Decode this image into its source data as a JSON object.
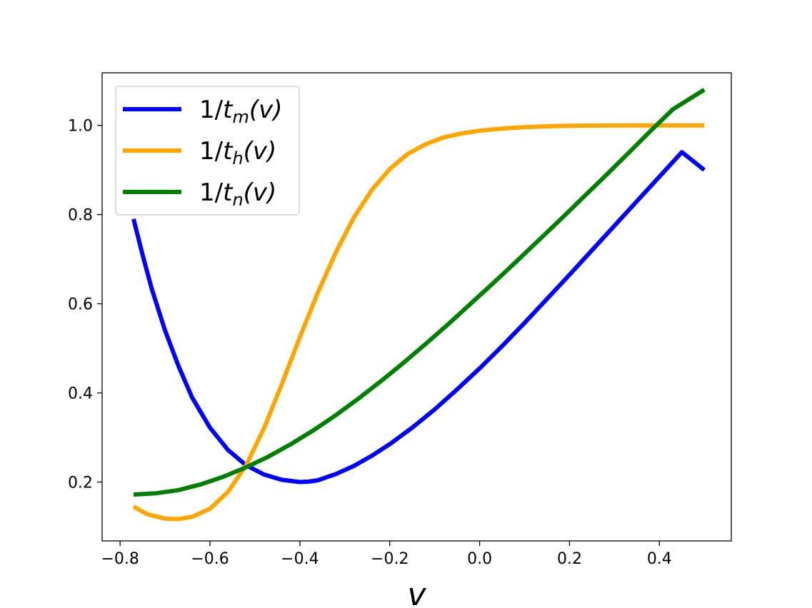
{
  "chart_data": {
    "type": "line",
    "xlabel": "v",
    "ylabel": "",
    "title": "",
    "xlim": [
      -0.84,
      0.56
    ],
    "ylim": [
      0.068,
      1.118
    ],
    "xticks": [
      "−0.8",
      "−0.6",
      "−0.4",
      "−0.2",
      "0.0",
      "0.2",
      "0.4"
    ],
    "yticks": [
      "0.2",
      "0.4",
      "0.6",
      "0.8",
      "1.0"
    ],
    "grid": false,
    "legend_position": "top-left",
    "series": [
      {
        "name": "1/t_m(v)",
        "legend": {
          "base": "1/",
          "var": "t",
          "sub": "m",
          "arg": "(v)"
        },
        "color": "#0000ff",
        "x": [
          -0.77,
          -0.75,
          -0.73,
          -0.7,
          -0.67,
          -0.64,
          -0.6,
          -0.56,
          -0.52,
          -0.48,
          -0.44,
          -0.4,
          -0.38,
          -0.36,
          -0.32,
          -0.28,
          -0.24,
          -0.2,
          -0.15,
          -0.1,
          -0.05,
          0.0,
          0.05,
          0.1,
          0.15,
          0.2,
          0.25,
          0.3,
          0.35,
          0.4,
          0.45,
          0.5
        ],
        "y": [
          0.79,
          0.71,
          0.635,
          0.54,
          0.46,
          0.39,
          0.322,
          0.272,
          0.238,
          0.217,
          0.205,
          0.2,
          0.201,
          0.204,
          0.218,
          0.236,
          0.259,
          0.285,
          0.322,
          0.363,
          0.408,
          0.455,
          0.505,
          0.557,
          0.611,
          0.665,
          0.72,
          0.775,
          0.83,
          0.885,
          0.94,
          0.9
        ]
      },
      {
        "name": "1/t_h(v)",
        "legend": {
          "base": "1/",
          "var": "t",
          "sub": "h",
          "arg": "(v)"
        },
        "color": "#ffa500",
        "x": [
          -0.77,
          -0.74,
          -0.7,
          -0.67,
          -0.64,
          -0.6,
          -0.56,
          -0.52,
          -0.48,
          -0.44,
          -0.4,
          -0.36,
          -0.32,
          -0.28,
          -0.24,
          -0.2,
          -0.16,
          -0.12,
          -0.08,
          -0.04,
          0.0,
          0.05,
          0.1,
          0.15,
          0.2,
          0.3,
          0.4,
          0.5
        ],
        "y": [
          0.145,
          0.128,
          0.118,
          0.117,
          0.122,
          0.14,
          0.178,
          0.237,
          0.32,
          0.42,
          0.525,
          0.625,
          0.715,
          0.793,
          0.855,
          0.902,
          0.936,
          0.958,
          0.973,
          0.982,
          0.988,
          0.993,
          0.996,
          0.998,
          0.999,
          1.0,
          1.0,
          1.0
        ]
      },
      {
        "name": "1/t_n(v)",
        "legend": {
          "base": "1/",
          "var": "t",
          "sub": "n",
          "arg": "(v)"
        },
        "color": "#008000",
        "x": [
          -0.77,
          -0.72,
          -0.67,
          -0.62,
          -0.57,
          -0.52,
          -0.47,
          -0.42,
          -0.37,
          -0.32,
          -0.27,
          -0.22,
          -0.17,
          -0.12,
          -0.07,
          -0.02,
          0.03,
          0.08,
          0.13,
          0.18,
          0.23,
          0.28,
          0.33,
          0.38,
          0.43,
          0.5
        ],
        "y": [
          0.172,
          0.175,
          0.182,
          0.195,
          0.212,
          0.233,
          0.257,
          0.285,
          0.316,
          0.35,
          0.387,
          0.426,
          0.467,
          0.51,
          0.554,
          0.6,
          0.646,
          0.693,
          0.741,
          0.789,
          0.838,
          0.887,
          0.937,
          0.987,
          1.036,
          1.08
        ]
      }
    ]
  }
}
